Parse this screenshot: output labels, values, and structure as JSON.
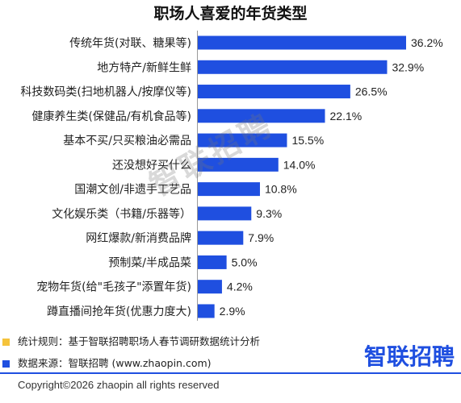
{
  "chart_data": {
    "type": "bar",
    "orientation": "horizontal",
    "title": "职场人喜爱的年货类型",
    "categories": [
      "传统年货(对联、糖果等)",
      "地方特产/新鲜生鲜",
      "科技数码类(扫地机器人/按摩仪等)",
      "健康养生类(保健品/有机食品等)",
      "基本不买/只买粮油必需品",
      "还没想好买什么",
      "国潮文创/非遗手工艺品",
      "文化娱乐类（书籍/乐器等）",
      "网红爆款/新消费品牌",
      "预制菜/半成品菜",
      "宠物年货(给\"毛孩子\"添置年货)",
      "蹲直播间抢年货(优惠力度大)"
    ],
    "values": [
      36.2,
      32.9,
      26.5,
      22.1,
      15.5,
      14.0,
      10.8,
      9.3,
      7.9,
      5.0,
      4.2,
      2.9
    ],
    "value_suffix": "%",
    "data_labels": true,
    "grid": false,
    "legend": "none"
  },
  "colors": {
    "bar": "#1f4fe0",
    "rule_marker": "#f5c33b",
    "source_marker": "#1f4fe0",
    "logo": "#1f4fe0",
    "divider": "#1f4fe0"
  },
  "watermark": "智联招聘",
  "footer": {
    "rule_text": "统计规则：基于智联招聘职场人春节调研数据统计分析",
    "source_text": "数据来源：智联招聘 (www.zhaopin.com)",
    "logo_text": "智联招聘",
    "copyright": "Copyright©2026 zhaopin all rights reserved"
  }
}
